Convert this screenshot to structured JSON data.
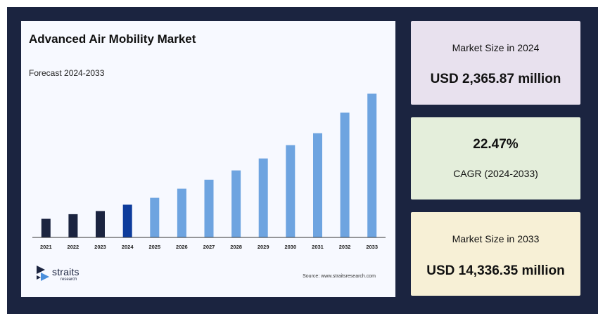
{
  "chart_data": {
    "type": "bar",
    "title": "Advanced Air Mobility Market",
    "subtitle": "Forecast 2024-2033",
    "categories": [
      "2021",
      "2022",
      "2023",
      "2024",
      "2025",
      "2026",
      "2027",
      "2028",
      "2029",
      "2030",
      "2031",
      "2032",
      "2033"
    ],
    "values": [
      1.0,
      1.25,
      1.42,
      1.76,
      2.13,
      2.62,
      3.1,
      3.6,
      4.24,
      4.96,
      5.6,
      6.7,
      7.72
    ],
    "value_units": "relative bar height (no value axis printed)",
    "ylim": [
      0,
      8
    ],
    "grid": false,
    "legend": "none",
    "colors": {
      "historical": "#1b2440",
      "base_year": "#0e3c9c",
      "forecast": "#6ea4e0"
    },
    "bar_color_roles": [
      "historical",
      "historical",
      "historical",
      "base_year",
      "forecast",
      "forecast",
      "forecast",
      "forecast",
      "forecast",
      "forecast",
      "forecast",
      "forecast",
      "forecast"
    ]
  },
  "brand": {
    "logo_text": "straits",
    "logo_subtext": "research",
    "source": "Source: www.straitsresearch.com"
  },
  "cards": [
    {
      "label": "Market Size in 2024",
      "value": "USD 2,365.87 million"
    },
    {
      "label": "CAGR (2024-2033)",
      "value": "22.47%"
    },
    {
      "label": "Market Size in 2033",
      "value": "USD 14,336.35 million"
    }
  ]
}
